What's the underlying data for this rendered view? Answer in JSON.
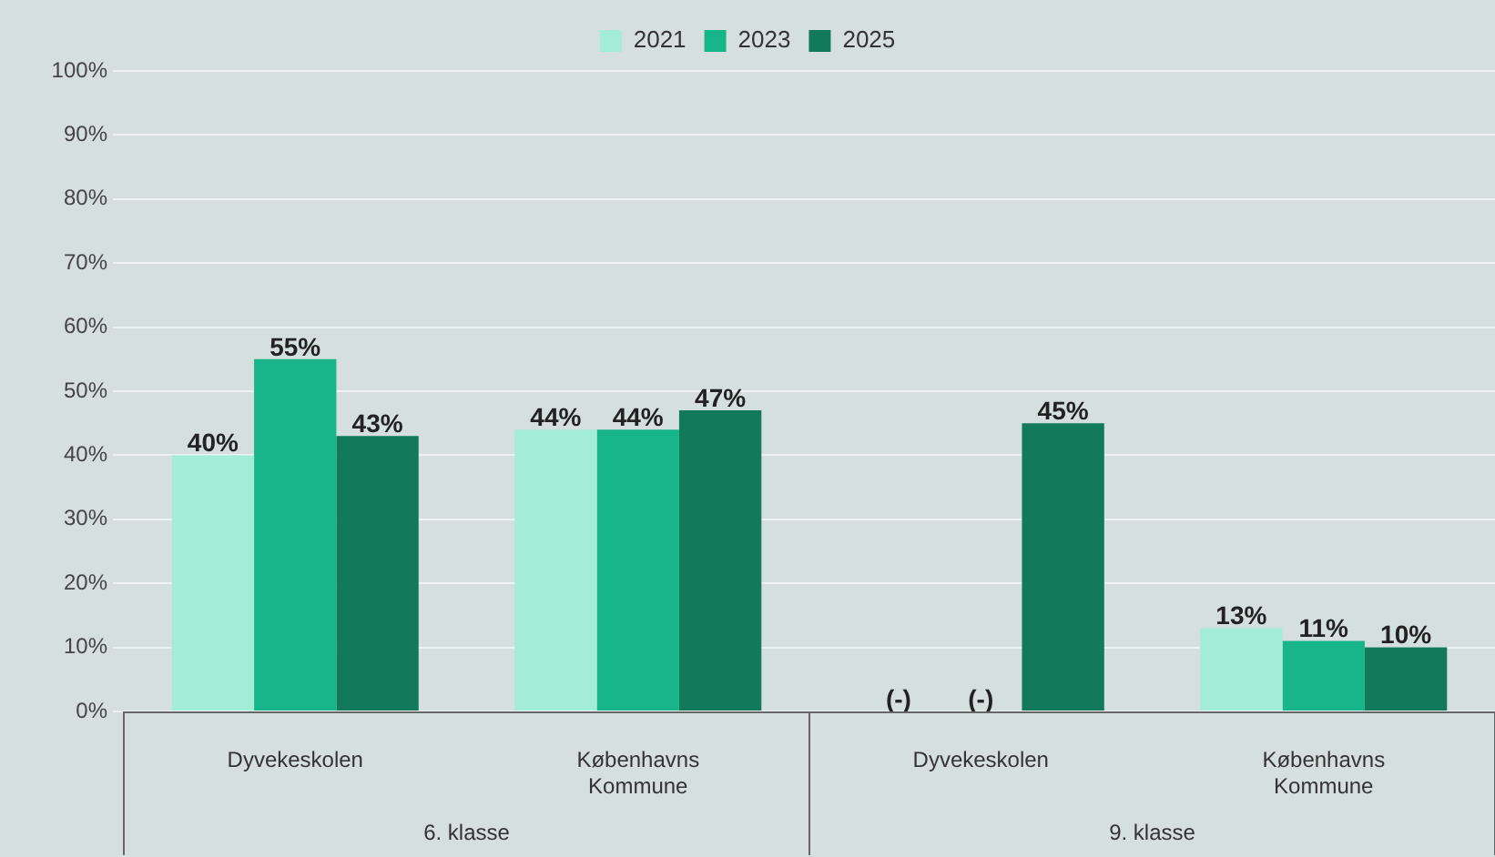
{
  "chart_data": {
    "type": "bar",
    "categories": [
      "Dyvekeskolen",
      "Københavns Kommune",
      "Dyvekeskolen",
      "Københavns Kommune"
    ],
    "series": [
      {
        "name": "2021",
        "color": "#a3ecd6",
        "values": [
          40,
          44,
          null,
          13
        ],
        "value_labels": [
          "40%",
          "44%",
          "(-)",
          "13%"
        ]
      },
      {
        "name": "2023",
        "color": "#18b48a",
        "values": [
          55,
          44,
          null,
          11
        ],
        "value_labels": [
          "55%",
          "44%",
          "(-)",
          "11%"
        ]
      },
      {
        "name": "2025",
        "color": "#127a5a",
        "values": [
          43,
          47,
          45,
          10
        ],
        "value_labels": [
          "43%",
          "47%",
          "45%",
          "10%"
        ]
      }
    ],
    "ylim": [
      0,
      100
    ],
    "yticks": [
      {
        "value": 0,
        "label": "0%"
      },
      {
        "value": 10,
        "label": "10%"
      },
      {
        "value": 20,
        "label": "20%"
      },
      {
        "value": 30,
        "label": "30%"
      },
      {
        "value": 40,
        "label": "40%"
      },
      {
        "value": 50,
        "label": "50%"
      },
      {
        "value": 60,
        "label": "60%"
      },
      {
        "value": 70,
        "label": "70%"
      },
      {
        "value": 80,
        "label": "80%"
      },
      {
        "value": 90,
        "label": "90%"
      },
      {
        "value": 100,
        "label": "100%"
      }
    ],
    "annotations": [
      "6. klasse",
      "9. klasse"
    ],
    "grid": "y",
    "legend": "top"
  }
}
